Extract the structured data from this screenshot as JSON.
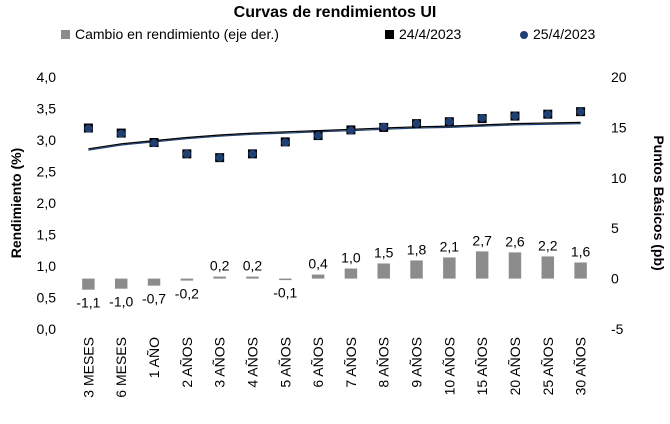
{
  "chart_data": {
    "type": "bar+scatter+line",
    "title": "Curvas de rendimientos UI",
    "categories": [
      "3 MESES",
      "6 MESES",
      "1 AÑO",
      "2 AÑOS",
      "3 AÑOS",
      "4 AÑOS",
      "5 AÑOS",
      "6 AÑOS",
      "7 AÑOS",
      "8 AÑOS",
      "9 AÑOS",
      "10 AÑOS",
      "15 AÑOS",
      "20 AÑOS",
      "25 AÑOS",
      "30 AÑOS"
    ],
    "bar_series": {
      "name": "Cambio en rendimiento (eje der.)",
      "axis": "right",
      "values": [
        -1.1,
        -1.0,
        -0.7,
        -0.2,
        0.2,
        0.2,
        -0.1,
        0.4,
        1.0,
        1.5,
        1.8,
        2.1,
        2.7,
        2.6,
        2.2,
        1.6
      ],
      "labels": [
        "-1,1",
        "-1,0",
        "-0,7",
        "-0,2",
        "0,2",
        "0,2",
        "-0,1",
        "0,4",
        "1,0",
        "1,5",
        "1,8",
        "2,1",
        "2,7",
        "2,6",
        "2,2",
        "1,6"
      ],
      "color": "#8c8c8c"
    },
    "series": [
      {
        "name": "24/4/2023",
        "axis": "left",
        "marker": "square",
        "color": "#000000",
        "values": [
          3.19,
          3.11,
          2.96,
          2.78,
          2.72,
          2.78,
          2.97,
          3.07,
          3.16,
          3.2,
          3.26,
          3.29,
          3.34,
          3.38,
          3.41,
          3.45
        ]
      },
      {
        "name": "25/4/2023",
        "axis": "left",
        "marker": "circle",
        "color": "#1f3f73",
        "values": [
          3.18,
          3.1,
          2.95,
          2.78,
          2.72,
          2.78,
          2.96,
          3.07,
          3.15,
          3.21,
          3.26,
          3.29,
          3.35,
          3.38,
          3.41,
          3.45
        ]
      }
    ],
    "trend_lines": [
      {
        "color": "#1f3f73",
        "values": [
          2.84,
          2.92,
          2.97,
          3.02,
          3.06,
          3.09,
          3.11,
          3.13,
          3.15,
          3.17,
          3.19,
          3.2,
          3.22,
          3.24,
          3.25,
          3.26
        ]
      },
      {
        "color": "#000000",
        "values": [
          2.86,
          2.94,
          2.99,
          3.04,
          3.08,
          3.11,
          3.13,
          3.15,
          3.17,
          3.19,
          3.21,
          3.22,
          3.24,
          3.26,
          3.27,
          3.28
        ]
      }
    ],
    "y_left": {
      "label": "Rendimiento (%)",
      "ylim": [
        0,
        4
      ],
      "ticks": [
        0,
        0.5,
        1,
        1.5,
        2,
        2.5,
        3,
        3.5,
        4
      ],
      "tick_labels": [
        "0,0",
        "0,5",
        "1,0",
        "1,5",
        "2,0",
        "2,5",
        "3,0",
        "3,5",
        "4,0"
      ]
    },
    "y_right": {
      "label": "Puntos Básicos (pb)",
      "ylim": [
        -5,
        20
      ],
      "ticks": [
        -5,
        0,
        5,
        10,
        15,
        20
      ],
      "tick_labels": [
        "-5",
        "0",
        "5",
        "10",
        "15",
        "20"
      ]
    },
    "legend": {
      "placement": "top",
      "entries": [
        "Cambio en rendimiento (eje der.)",
        "24/4/2023",
        "25/4/2023"
      ]
    },
    "grid": false
  }
}
